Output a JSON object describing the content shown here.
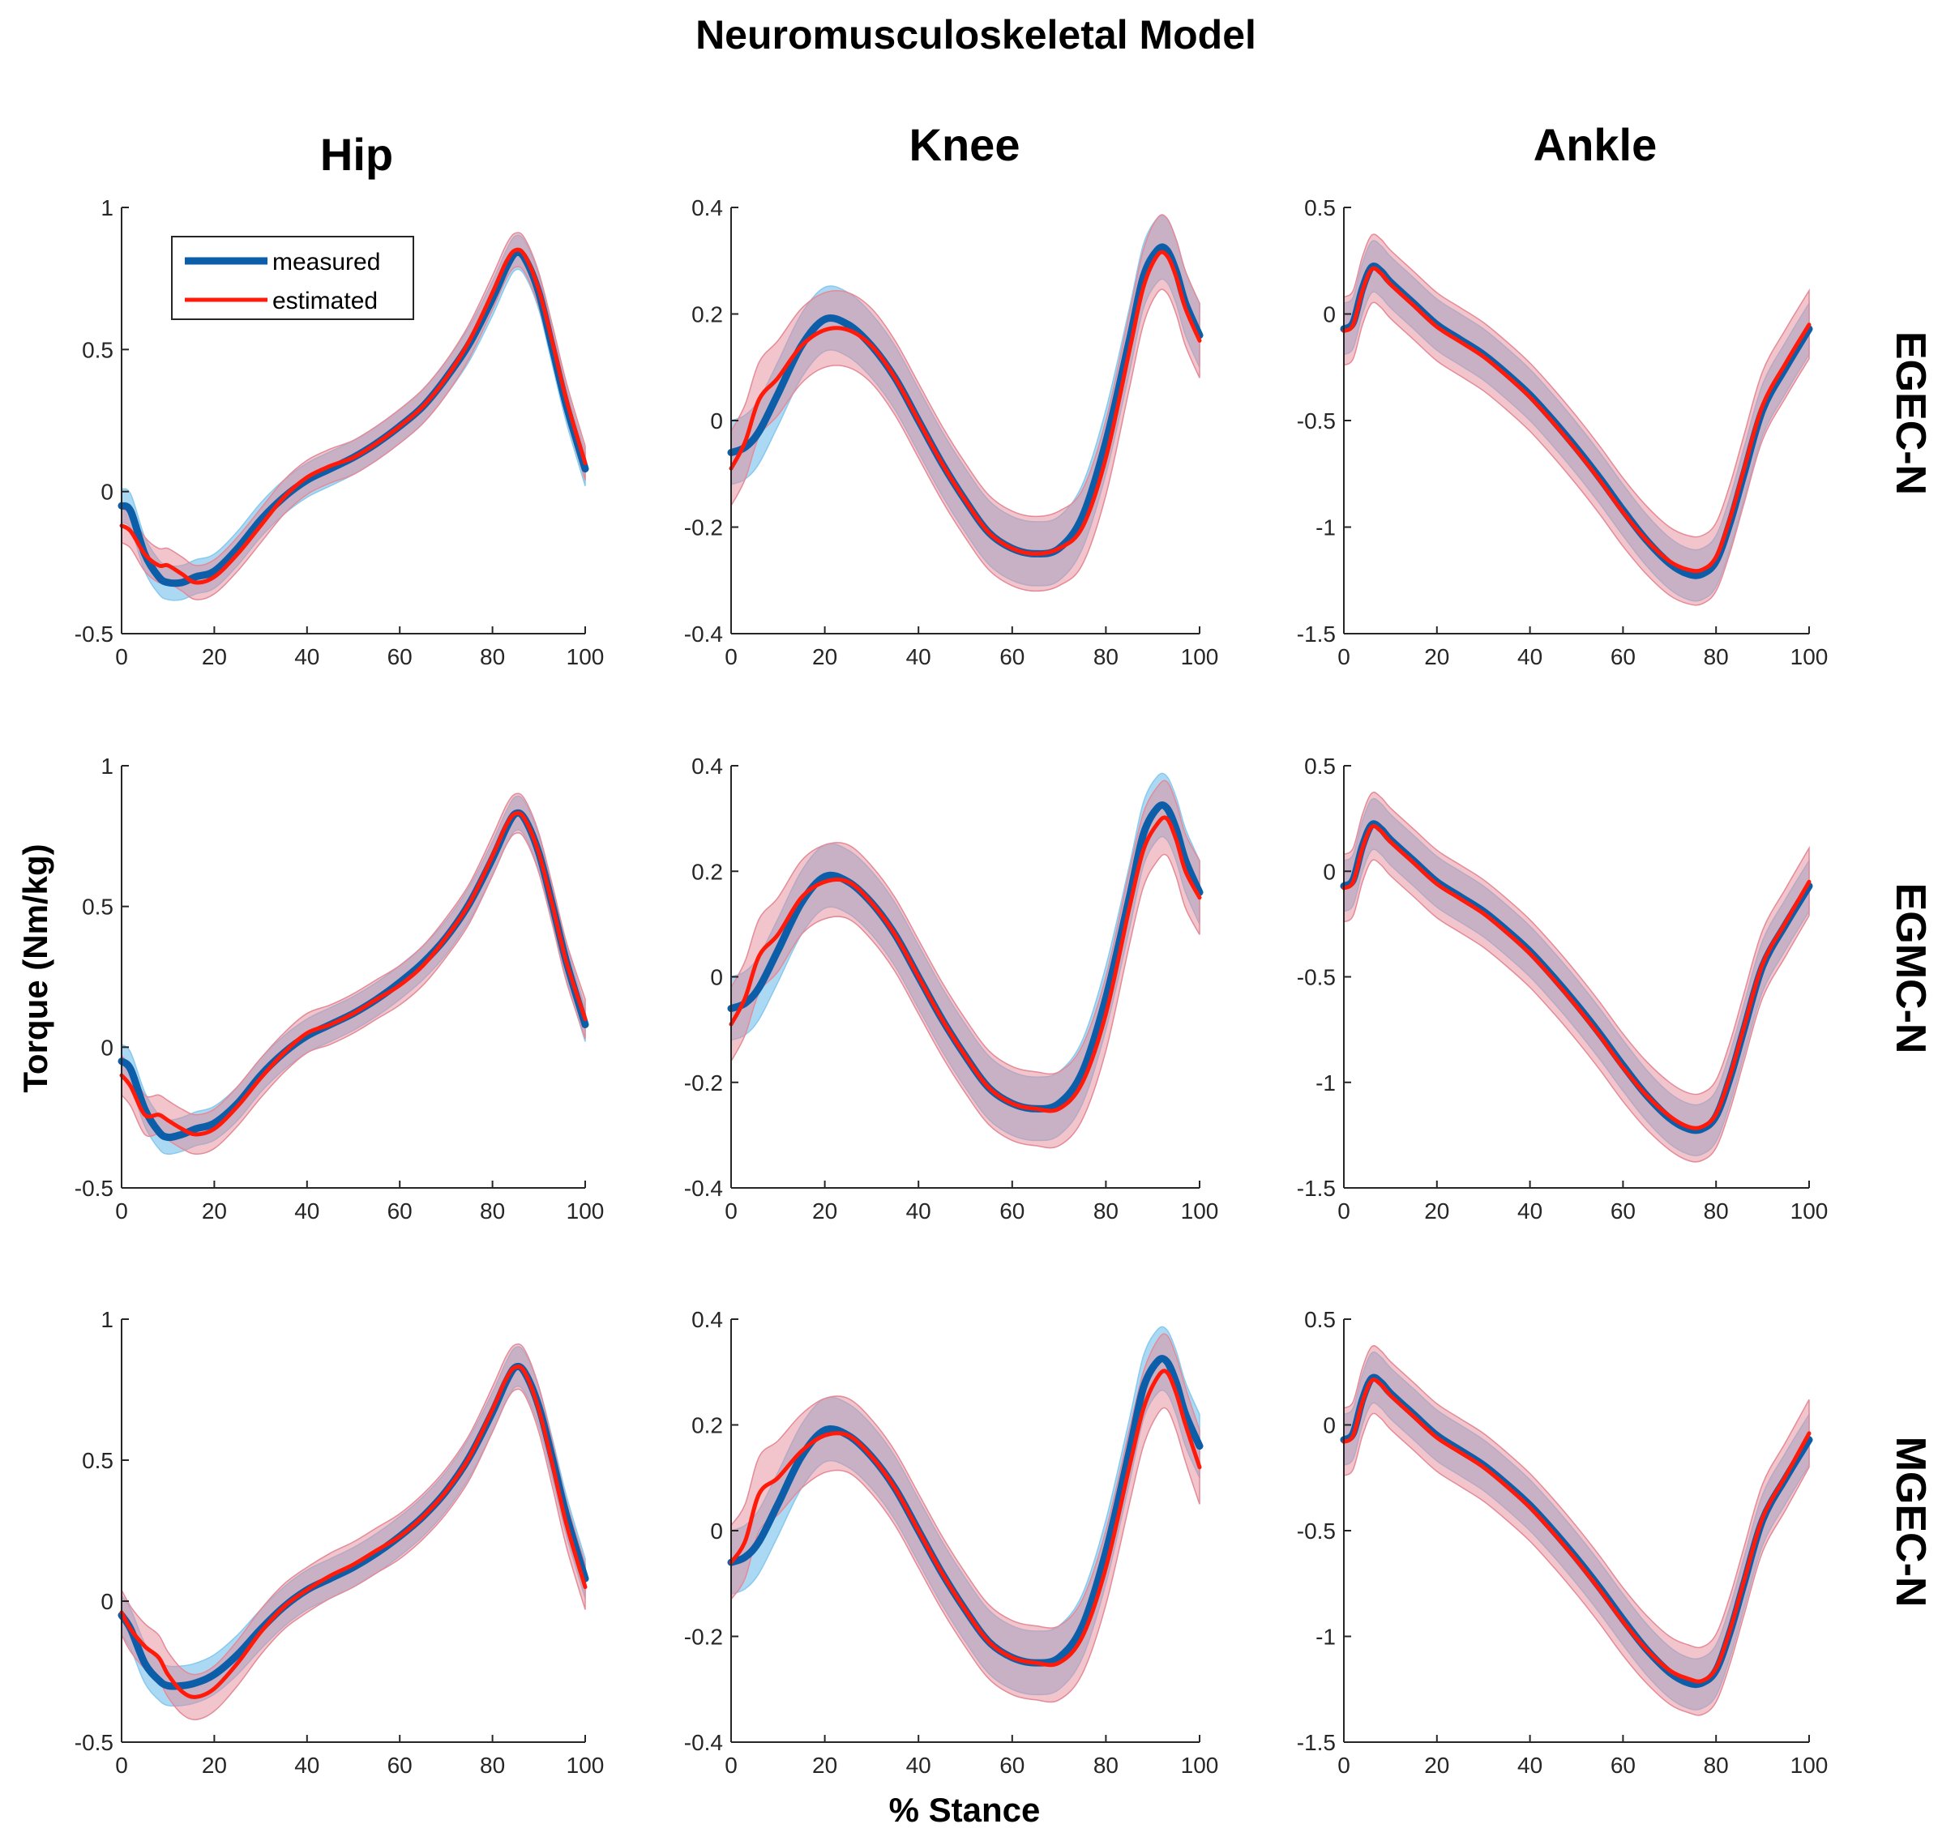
{
  "figure": {
    "title": "Neuromusculoskeletal Model",
    "ylabel": "Torque (Nm/kg)",
    "xlabel": "% Stance",
    "columns": [
      "Hip",
      "Knee",
      "Ankle"
    ],
    "rows": [
      "EGEC-N",
      "EGMC-N",
      "MGEC-N"
    ],
    "legend": {
      "measured": "measured",
      "estimated": "estimated"
    },
    "colors": {
      "measured": "#0d5ea8",
      "estimated": "#ff1a0a",
      "measured_band": "#88c9ee",
      "estimated_band": "#e58a98"
    }
  },
  "chart_data": [
    {
      "type": "line",
      "joint": "Hip",
      "condition": "EGEC-N",
      "xlim": [
        0,
        100
      ],
      "ylim": [
        -0.5,
        1
      ],
      "xticks": [
        "0",
        "20",
        "40",
        "60",
        "80",
        "100"
      ],
      "yticks": [
        "-0.5",
        "0",
        "0.5",
        "1"
      ],
      "ytick_values": [
        -0.5,
        0,
        0.5,
        1
      ],
      "x": [
        0,
        2,
        5,
        8,
        10,
        13,
        16,
        20,
        25,
        30,
        35,
        40,
        45,
        50,
        55,
        60,
        65,
        70,
        75,
        80,
        83,
        85,
        87,
        90,
        93,
        96,
        100
      ],
      "series": [
        {
          "name": "measured",
          "values": [
            -0.05,
            -0.07,
            -0.22,
            -0.3,
            -0.32,
            -0.32,
            -0.3,
            -0.28,
            -0.2,
            -0.1,
            -0.02,
            0.04,
            0.08,
            0.12,
            0.17,
            0.23,
            0.3,
            0.4,
            0.52,
            0.68,
            0.79,
            0.84,
            0.82,
            0.7,
            0.5,
            0.3,
            0.08
          ],
          "band": 0.06
        },
        {
          "name": "estimated",
          "values": [
            -0.12,
            -0.14,
            -0.22,
            -0.26,
            -0.26,
            -0.29,
            -0.32,
            -0.3,
            -0.22,
            -0.12,
            -0.02,
            0.05,
            0.09,
            0.12,
            0.17,
            0.23,
            0.3,
            0.4,
            0.53,
            0.7,
            0.81,
            0.85,
            0.83,
            0.71,
            0.52,
            0.32,
            0.1
          ],
          "band": 0.06
        }
      ]
    },
    {
      "type": "line",
      "joint": "Knee",
      "condition": "EGEC-N",
      "xlim": [
        0,
        100
      ],
      "ylim": [
        -0.4,
        0.4
      ],
      "xticks": [
        "0",
        "20",
        "40",
        "60",
        "80",
        "100"
      ],
      "yticks": [
        "-0.4",
        "-0.2",
        "0",
        "0.2",
        "0.4"
      ],
      "ytick_values": [
        -0.4,
        -0.2,
        0,
        0.2,
        0.4
      ],
      "x": [
        0,
        3,
        6,
        10,
        15,
        20,
        25,
        30,
        35,
        40,
        45,
        50,
        55,
        60,
        65,
        70,
        75,
        80,
        85,
        88,
        91,
        93,
        95,
        97,
        100
      ],
      "series": [
        {
          "name": "measured",
          "values": [
            -0.06,
            -0.05,
            -0.02,
            0.05,
            0.14,
            0.19,
            0.18,
            0.14,
            0.08,
            0.0,
            -0.08,
            -0.15,
            -0.21,
            -0.24,
            -0.25,
            -0.24,
            -0.18,
            -0.04,
            0.15,
            0.27,
            0.32,
            0.32,
            0.28,
            0.22,
            0.16
          ],
          "band": 0.06
        },
        {
          "name": "estimated",
          "values": [
            -0.09,
            -0.04,
            0.04,
            0.08,
            0.14,
            0.17,
            0.17,
            0.14,
            0.08,
            0.0,
            -0.08,
            -0.15,
            -0.21,
            -0.24,
            -0.25,
            -0.24,
            -0.2,
            -0.07,
            0.13,
            0.25,
            0.31,
            0.31,
            0.27,
            0.21,
            0.15
          ],
          "band": 0.07
        }
      ]
    },
    {
      "type": "line",
      "joint": "Ankle",
      "condition": "EGEC-N",
      "xlim": [
        0,
        100
      ],
      "ylim": [
        -1.5,
        0.5
      ],
      "xticks": [
        "0",
        "20",
        "40",
        "60",
        "80",
        "100"
      ],
      "yticks": [
        "-1.5",
        "-1",
        "-0.5",
        "0",
        "0.5"
      ],
      "ytick_values": [
        -1.5,
        -1,
        -0.5,
        0,
        0.5
      ],
      "x": [
        0,
        2,
        4,
        6,
        8,
        10,
        15,
        20,
        25,
        30,
        35,
        40,
        45,
        50,
        55,
        60,
        65,
        70,
        74,
        77,
        80,
        83,
        86,
        90,
        95,
        100
      ],
      "series": [
        {
          "name": "measured",
          "values": [
            -0.07,
            -0.04,
            0.12,
            0.22,
            0.2,
            0.15,
            0.05,
            -0.05,
            -0.12,
            -0.19,
            -0.28,
            -0.38,
            -0.5,
            -0.63,
            -0.77,
            -0.92,
            -1.06,
            -1.17,
            -1.22,
            -1.22,
            -1.16,
            -0.98,
            -0.75,
            -0.45,
            -0.25,
            -0.07
          ],
          "band": 0.12
        },
        {
          "name": "estimated",
          "values": [
            -0.08,
            -0.05,
            0.11,
            0.21,
            0.19,
            0.14,
            0.04,
            -0.06,
            -0.13,
            -0.2,
            -0.29,
            -0.39,
            -0.51,
            -0.64,
            -0.78,
            -0.93,
            -1.06,
            -1.16,
            -1.2,
            -1.2,
            -1.14,
            -0.96,
            -0.73,
            -0.43,
            -0.23,
            -0.05
          ],
          "band": 0.16
        }
      ]
    },
    {
      "type": "line",
      "joint": "Hip",
      "condition": "EGMC-N",
      "xlim": [
        0,
        100
      ],
      "ylim": [
        -0.5,
        1
      ],
      "xticks": [
        "0",
        "20",
        "40",
        "60",
        "80",
        "100"
      ],
      "yticks": [
        "-0.5",
        "0",
        "0.5",
        "1"
      ],
      "ytick_values": [
        -0.5,
        0,
        0.5,
        1
      ],
      "x": [
        0,
        2,
        5,
        8,
        10,
        13,
        16,
        20,
        25,
        30,
        35,
        40,
        45,
        50,
        55,
        60,
        65,
        70,
        75,
        80,
        83,
        85,
        87,
        90,
        93,
        96,
        100
      ],
      "series": [
        {
          "name": "measured",
          "values": [
            -0.05,
            -0.08,
            -0.22,
            -0.3,
            -0.32,
            -0.31,
            -0.29,
            -0.27,
            -0.2,
            -0.1,
            -0.02,
            0.04,
            0.08,
            0.12,
            0.17,
            0.23,
            0.3,
            0.39,
            0.51,
            0.67,
            0.78,
            0.83,
            0.81,
            0.69,
            0.5,
            0.3,
            0.08
          ],
          "band": 0.06
        },
        {
          "name": "estimated",
          "values": [
            -0.1,
            -0.14,
            -0.24,
            -0.24,
            -0.26,
            -0.29,
            -0.31,
            -0.29,
            -0.21,
            -0.11,
            -0.02,
            0.05,
            0.08,
            0.12,
            0.17,
            0.22,
            0.29,
            0.39,
            0.51,
            0.68,
            0.79,
            0.83,
            0.81,
            0.69,
            0.5,
            0.3,
            0.1
          ],
          "band": 0.07
        }
      ]
    },
    {
      "type": "line",
      "joint": "Knee",
      "condition": "EGMC-N",
      "xlim": [
        0,
        100
      ],
      "ylim": [
        -0.4,
        0.4
      ],
      "xticks": [
        "0",
        "20",
        "40",
        "60",
        "80",
        "100"
      ],
      "yticks": [
        "-0.4",
        "-0.2",
        "0",
        "0.2",
        "0.4"
      ],
      "ytick_values": [
        -0.4,
        -0.2,
        0,
        0.2,
        0.4
      ],
      "x": [
        0,
        3,
        6,
        10,
        15,
        20,
        25,
        30,
        35,
        40,
        45,
        50,
        55,
        60,
        65,
        70,
        75,
        80,
        85,
        88,
        91,
        93,
        95,
        97,
        100
      ],
      "series": [
        {
          "name": "measured",
          "values": [
            -0.06,
            -0.05,
            -0.02,
            0.05,
            0.14,
            0.19,
            0.18,
            0.14,
            0.08,
            0.0,
            -0.08,
            -0.15,
            -0.21,
            -0.24,
            -0.25,
            -0.24,
            -0.18,
            -0.04,
            0.15,
            0.27,
            0.32,
            0.32,
            0.28,
            0.22,
            0.16
          ],
          "band": 0.06
        },
        {
          "name": "estimated",
          "values": [
            -0.09,
            -0.04,
            0.04,
            0.08,
            0.15,
            0.18,
            0.18,
            0.14,
            0.08,
            0.0,
            -0.08,
            -0.15,
            -0.21,
            -0.24,
            -0.25,
            -0.25,
            -0.2,
            -0.07,
            0.13,
            0.24,
            0.29,
            0.3,
            0.26,
            0.2,
            0.15
          ],
          "band": 0.07
        }
      ]
    },
    {
      "type": "line",
      "joint": "Ankle",
      "condition": "EGMC-N",
      "xlim": [
        0,
        100
      ],
      "ylim": [
        -1.5,
        0.5
      ],
      "xticks": [
        "0",
        "20",
        "40",
        "60",
        "80",
        "100"
      ],
      "yticks": [
        "-1.5",
        "-1",
        "-0.5",
        "0",
        "0.5"
      ],
      "ytick_values": [
        -1.5,
        -1,
        -0.5,
        0,
        0.5
      ],
      "x": [
        0,
        2,
        4,
        6,
        8,
        10,
        15,
        20,
        25,
        30,
        35,
        40,
        45,
        50,
        55,
        60,
        65,
        70,
        74,
        77,
        80,
        83,
        86,
        90,
        95,
        100
      ],
      "series": [
        {
          "name": "measured",
          "values": [
            -0.07,
            -0.04,
            0.12,
            0.22,
            0.2,
            0.15,
            0.05,
            -0.05,
            -0.12,
            -0.19,
            -0.28,
            -0.38,
            -0.5,
            -0.63,
            -0.77,
            -0.92,
            -1.06,
            -1.17,
            -1.22,
            -1.22,
            -1.16,
            -0.98,
            -0.75,
            -0.45,
            -0.25,
            -0.07
          ],
          "band": 0.12
        },
        {
          "name": "estimated",
          "values": [
            -0.08,
            -0.05,
            0.11,
            0.21,
            0.19,
            0.14,
            0.04,
            -0.06,
            -0.13,
            -0.2,
            -0.29,
            -0.39,
            -0.51,
            -0.64,
            -0.78,
            -0.93,
            -1.06,
            -1.16,
            -1.21,
            -1.21,
            -1.15,
            -0.97,
            -0.74,
            -0.44,
            -0.24,
            -0.05
          ],
          "band": 0.16
        }
      ]
    },
    {
      "type": "line",
      "joint": "Hip",
      "condition": "MGEC-N",
      "xlim": [
        0,
        100
      ],
      "ylim": [
        -0.5,
        1
      ],
      "xticks": [
        "0",
        "20",
        "40",
        "60",
        "80",
        "100"
      ],
      "yticks": [
        "-0.5",
        "0",
        "0.5",
        "1"
      ],
      "ytick_values": [
        -0.5,
        0,
        0.5,
        1
      ],
      "x": [
        0,
        2,
        5,
        8,
        10,
        13,
        16,
        20,
        25,
        30,
        35,
        40,
        45,
        50,
        55,
        60,
        65,
        70,
        75,
        80,
        83,
        85,
        87,
        90,
        93,
        96,
        100
      ],
      "series": [
        {
          "name": "measured",
          "values": [
            -0.05,
            -0.1,
            -0.22,
            -0.28,
            -0.3,
            -0.3,
            -0.29,
            -0.26,
            -0.19,
            -0.1,
            -0.02,
            0.04,
            0.08,
            0.12,
            0.17,
            0.23,
            0.3,
            0.39,
            0.51,
            0.67,
            0.78,
            0.83,
            0.81,
            0.69,
            0.5,
            0.3,
            0.08
          ],
          "band": 0.07
        },
        {
          "name": "estimated",
          "values": [
            -0.04,
            -0.1,
            -0.16,
            -0.2,
            -0.26,
            -0.32,
            -0.34,
            -0.31,
            -0.22,
            -0.11,
            -0.02,
            0.04,
            0.09,
            0.13,
            0.18,
            0.23,
            0.3,
            0.39,
            0.51,
            0.68,
            0.79,
            0.83,
            0.81,
            0.68,
            0.48,
            0.27,
            0.05
          ],
          "band": 0.08
        }
      ]
    },
    {
      "type": "line",
      "joint": "Knee",
      "condition": "MGEC-N",
      "xlim": [
        0,
        100
      ],
      "ylim": [
        -0.4,
        0.4
      ],
      "xticks": [
        "0",
        "20",
        "40",
        "60",
        "80",
        "100"
      ],
      "yticks": [
        "-0.4",
        "-0.2",
        "0",
        "0.2",
        "0.4"
      ],
      "ytick_values": [
        -0.4,
        -0.2,
        0,
        0.2,
        0.4
      ],
      "x": [
        0,
        3,
        6,
        10,
        15,
        20,
        25,
        30,
        35,
        40,
        45,
        50,
        55,
        60,
        65,
        70,
        75,
        80,
        85,
        88,
        91,
        93,
        95,
        97,
        100
      ],
      "series": [
        {
          "name": "measured",
          "values": [
            -0.06,
            -0.05,
            -0.02,
            0.05,
            0.14,
            0.19,
            0.18,
            0.14,
            0.08,
            0.0,
            -0.08,
            -0.15,
            -0.21,
            -0.24,
            -0.25,
            -0.24,
            -0.18,
            -0.04,
            0.15,
            0.27,
            0.32,
            0.32,
            0.28,
            0.22,
            0.16
          ],
          "band": 0.06
        },
        {
          "name": "estimated",
          "values": [
            -0.06,
            -0.02,
            0.07,
            0.1,
            0.15,
            0.18,
            0.18,
            0.14,
            0.08,
            0.0,
            -0.08,
            -0.15,
            -0.21,
            -0.24,
            -0.25,
            -0.25,
            -0.2,
            -0.07,
            0.12,
            0.23,
            0.29,
            0.3,
            0.26,
            0.2,
            0.12
          ],
          "band": 0.07
        }
      ]
    },
    {
      "type": "line",
      "joint": "Ankle",
      "condition": "MGEC-N",
      "xlim": [
        0,
        100
      ],
      "ylim": [
        -1.5,
        0.5
      ],
      "xticks": [
        "0",
        "20",
        "40",
        "60",
        "80",
        "100"
      ],
      "yticks": [
        "-1.5",
        "-1",
        "-0.5",
        "0",
        "0.5"
      ],
      "ytick_values": [
        -1.5,
        -1,
        -0.5,
        0,
        0.5
      ],
      "x": [
        0,
        2,
        4,
        6,
        8,
        10,
        15,
        20,
        25,
        30,
        35,
        40,
        45,
        50,
        55,
        60,
        65,
        70,
        74,
        77,
        80,
        83,
        86,
        90,
        95,
        100
      ],
      "series": [
        {
          "name": "measured",
          "values": [
            -0.07,
            -0.04,
            0.12,
            0.22,
            0.2,
            0.15,
            0.05,
            -0.05,
            -0.12,
            -0.19,
            -0.28,
            -0.38,
            -0.5,
            -0.63,
            -0.77,
            -0.92,
            -1.06,
            -1.17,
            -1.22,
            -1.22,
            -1.16,
            -0.98,
            -0.75,
            -0.45,
            -0.25,
            -0.07
          ],
          "band": 0.12
        },
        {
          "name": "estimated",
          "values": [
            -0.08,
            -0.05,
            0.11,
            0.21,
            0.19,
            0.14,
            0.04,
            -0.06,
            -0.13,
            -0.2,
            -0.29,
            -0.39,
            -0.51,
            -0.64,
            -0.78,
            -0.93,
            -1.06,
            -1.16,
            -1.2,
            -1.21,
            -1.15,
            -0.97,
            -0.74,
            -0.44,
            -0.24,
            -0.04
          ],
          "band": 0.16
        }
      ]
    }
  ]
}
